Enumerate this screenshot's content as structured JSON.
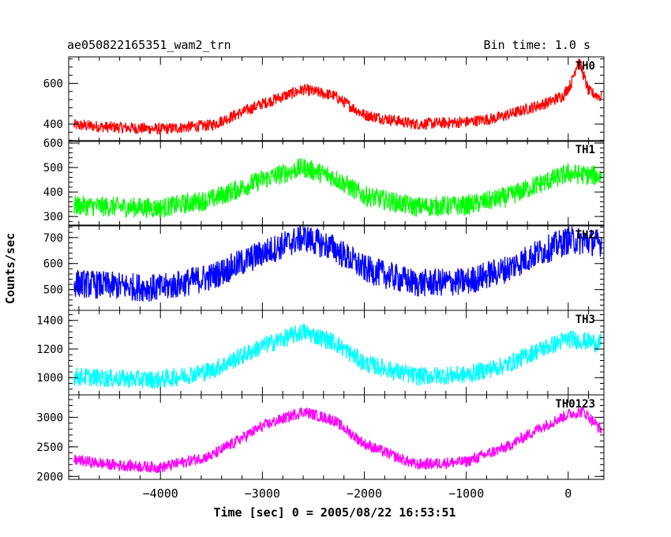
{
  "chart_data": {
    "type": "line",
    "title": "ae050822165351_wam2_trn",
    "subtitle": "Bin time: 1.0 s",
    "xlabel": "Time [sec] 0 = 2005/08/22 16:53:51",
    "ylabel": "Counts/sec",
    "xlim": [
      -4900,
      350
    ],
    "xticks": [
      -4000,
      -3000,
      -2000,
      -1000,
      0
    ],
    "grid": false,
    "panels": [
      {
        "name": "TH0",
        "color": "#ff0000",
        "ylim": [
          315,
          730
        ],
        "yticks": [
          400,
          600
        ],
        "noise": 22,
        "x": [
          -4850,
          -4500,
          -4000,
          -3500,
          -3000,
          -2600,
          -2300,
          -2000,
          -1500,
          -1000,
          -700,
          -400,
          -200,
          -50,
          30,
          100,
          150,
          200,
          330
        ],
        "y": [
          395,
          385,
          375,
          395,
          500,
          570,
          540,
          445,
          400,
          410,
          430,
          475,
          505,
          540,
          600,
          720,
          640,
          560,
          530
        ]
      },
      {
        "name": "TH1",
        "color": "#00ff00",
        "ylim": [
          265,
          610
        ],
        "yticks": [
          300,
          400,
          500,
          600
        ],
        "noise": 32,
        "x": [
          -4850,
          -4500,
          -4000,
          -3500,
          -3000,
          -2600,
          -2300,
          -2000,
          -1500,
          -1000,
          -600,
          -300,
          0,
          330
        ],
        "y": [
          345,
          340,
          335,
          370,
          450,
          500,
          460,
          385,
          340,
          345,
          380,
          430,
          475,
          465
        ]
      },
      {
        "name": "TH2",
        "color": "#0000ff",
        "ylim": [
          420,
          745
        ],
        "yticks": [
          500,
          600,
          700
        ],
        "noise": 42,
        "x": [
          -4850,
          -4500,
          -4000,
          -3500,
          -3000,
          -2600,
          -2300,
          -2000,
          -1500,
          -1000,
          -600,
          -300,
          0,
          330
        ],
        "y": [
          525,
          515,
          505,
          550,
          640,
          700,
          660,
          580,
          525,
          530,
          580,
          640,
          690,
          680
        ]
      },
      {
        "name": "TH3",
        "color": "#00ffff",
        "ylim": [
          880,
          1470
        ],
        "yticks": [
          1000,
          1200,
          1400
        ],
        "noise": 50,
        "x": [
          -4850,
          -4500,
          -4000,
          -3500,
          -3000,
          -2600,
          -2300,
          -2000,
          -1500,
          -1000,
          -600,
          -300,
          0,
          330
        ],
        "y": [
          1010,
          995,
          985,
          1050,
          1220,
          1320,
          1250,
          1100,
          1010,
          1020,
          1090,
          1190,
          1270,
          1240
        ]
      },
      {
        "name": "TH0123",
        "color": "#ff00ff",
        "ylim": [
          1950,
          3380
        ],
        "yticks": [
          2000,
          2500,
          3000
        ],
        "noise": 75,
        "x": [
          -4850,
          -4500,
          -4000,
          -3500,
          -3000,
          -2600,
          -2300,
          -2000,
          -1500,
          -1000,
          -600,
          -300,
          0,
          150,
          330
        ],
        "y": [
          2280,
          2200,
          2150,
          2350,
          2850,
          3100,
          2950,
          2550,
          2200,
          2250,
          2500,
          2800,
          3050,
          3100,
          2780
        ]
      }
    ]
  }
}
